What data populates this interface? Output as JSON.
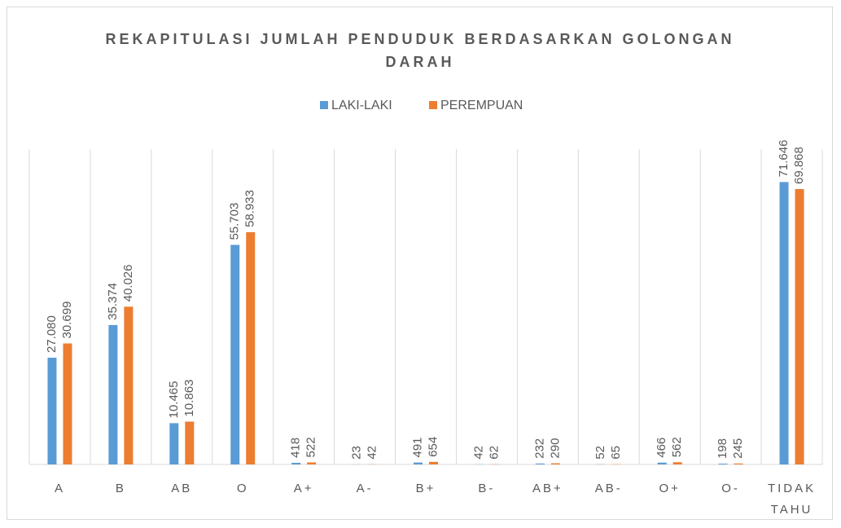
{
  "chart_data": {
    "type": "bar",
    "title": "REKAPITULASI JUMLAH PENDUDUK BERDASARKAN GOLONGAN DARAH",
    "categories": [
      "A",
      "B",
      "AB",
      "O",
      "A+",
      "A-",
      "B+",
      "B-",
      "AB+",
      "AB-",
      "O+",
      "O-",
      "TIDAK TAHU"
    ],
    "series": [
      {
        "name": "LAKI-LAKI",
        "color": "#5b9bd5",
        "values": [
          27080,
          35374,
          10465,
          55703,
          418,
          23,
          491,
          42,
          232,
          52,
          466,
          198,
          71646
        ],
        "value_labels": [
          "27.080",
          "35.374",
          "10.465",
          "55.703",
          "418",
          "23",
          "491",
          "42",
          "232",
          "52",
          "466",
          "198",
          "71.646"
        ]
      },
      {
        "name": "PEREMPUAN",
        "color": "#ed7d31",
        "values": [
          30699,
          40026,
          10863,
          58933,
          522,
          42,
          654,
          62,
          290,
          65,
          562,
          245,
          69868
        ],
        "value_labels": [
          "30.699",
          "40.026",
          "10.863",
          "58.933",
          "522",
          "42",
          "654",
          "62",
          "290",
          "65",
          "562",
          "245",
          "69.868"
        ]
      }
    ],
    "ylim": [
      0,
      80000
    ],
    "legend": "top"
  }
}
